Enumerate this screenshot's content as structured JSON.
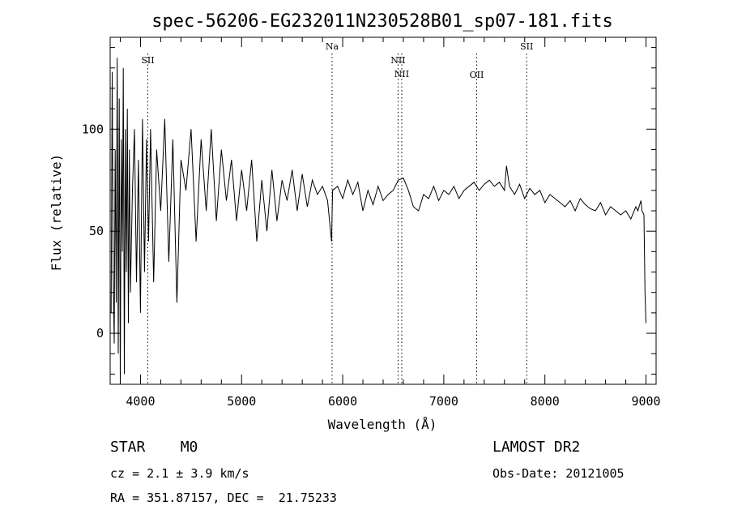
{
  "chart_data": {
    "type": "line",
    "title": "spec-56206-EG232011N230528B01_sp07-181.fits",
    "xlabel": "Wavelength (Å)",
    "ylabel": "Flux (relative)",
    "xlim": [
      3700,
      9100
    ],
    "ylim": [
      -25,
      145
    ],
    "x_ticks": [
      4000,
      5000,
      6000,
      7000,
      8000,
      9000
    ],
    "y_ticks": [
      0,
      50,
      100
    ],
    "grid": false,
    "series": [
      {
        "name": "",
        "x": [
          3710,
          3720,
          3730,
          3740,
          3750,
          3760,
          3770,
          3780,
          3790,
          3800,
          3810,
          3820,
          3830,
          3840,
          3850,
          3860,
          3870,
          3880,
          3890,
          3900,
          3920,
          3940,
          3960,
          3980,
          4000,
          4020,
          4040,
          4060,
          4080,
          4100,
          4130,
          4160,
          4200,
          4240,
          4280,
          4320,
          4360,
          4400,
          4450,
          4500,
          4550,
          4600,
          4650,
          4700,
          4750,
          4800,
          4850,
          4900,
          4950,
          5000,
          5050,
          5100,
          5150,
          5200,
          5250,
          5300,
          5350,
          5400,
          5450,
          5500,
          5550,
          5600,
          5650,
          5700,
          5750,
          5800,
          5850,
          5890,
          5900,
          5950,
          6000,
          6050,
          6100,
          6150,
          6200,
          6250,
          6300,
          6350,
          6400,
          6450,
          6500,
          6550,
          6600,
          6650,
          6700,
          6750,
          6800,
          6850,
          6900,
          6950,
          7000,
          7050,
          7100,
          7150,
          7200,
          7250,
          7300,
          7350,
          7400,
          7450,
          7500,
          7550,
          7600,
          7620,
          7650,
          7700,
          7750,
          7800,
          7850,
          7900,
          7950,
          8000,
          8050,
          8100,
          8150,
          8200,
          8250,
          8300,
          8350,
          8400,
          8450,
          8500,
          8550,
          8600,
          8650,
          8700,
          8750,
          8800,
          8850,
          8900,
          8920,
          8950,
          8960,
          8980,
          8990,
          9000
        ],
        "y": [
          10,
          128,
          30,
          -5,
          90,
          15,
          135,
          -10,
          115,
          -25,
          95,
          40,
          130,
          -20,
          100,
          30,
          110,
          5,
          90,
          20,
          70,
          100,
          25,
          85,
          10,
          105,
          30,
          95,
          45,
          100,
          25,
          90,
          60,
          105,
          35,
          95,
          15,
          85,
          70,
          100,
          45,
          95,
          60,
          100,
          55,
          90,
          65,
          85,
          55,
          80,
          60,
          85,
          45,
          75,
          50,
          80,
          55,
          75,
          65,
          80,
          60,
          78,
          62,
          75,
          68,
          72,
          65,
          45,
          70,
          72,
          66,
          75,
          68,
          74,
          60,
          70,
          63,
          72,
          65,
          68,
          70,
          75,
          76,
          70,
          62,
          60,
          68,
          66,
          72,
          65,
          70,
          68,
          72,
          66,
          70,
          72,
          74,
          70,
          73,
          75,
          72,
          74,
          70,
          82,
          72,
          68,
          73,
          66,
          71,
          68,
          70,
          64,
          68,
          66,
          64,
          62,
          65,
          60,
          66,
          63,
          61,
          60,
          64,
          58,
          62,
          60,
          58,
          60,
          56,
          62,
          60,
          65,
          60,
          58,
          20,
          5
        ]
      }
    ],
    "annotations": [
      {
        "label": "SII",
        "x": 4072
      },
      {
        "label": "Na",
        "x": 5895
      },
      {
        "label": "NII",
        "x": 6548
      },
      {
        "label": "NII",
        "x": 6584
      },
      {
        "label": "OII",
        "x": 7325
      },
      {
        "label": "SII",
        "x": 7820
      }
    ]
  },
  "info": {
    "class_line": "STAR    M0",
    "survey": "LAMOST DR2",
    "cz_line": "cz = 2.1 ± 3.9 km/s",
    "obs_date": "Obs-Date: 20121005",
    "coords_line": "RA = 351.87157, DEC =  21.75233"
  }
}
